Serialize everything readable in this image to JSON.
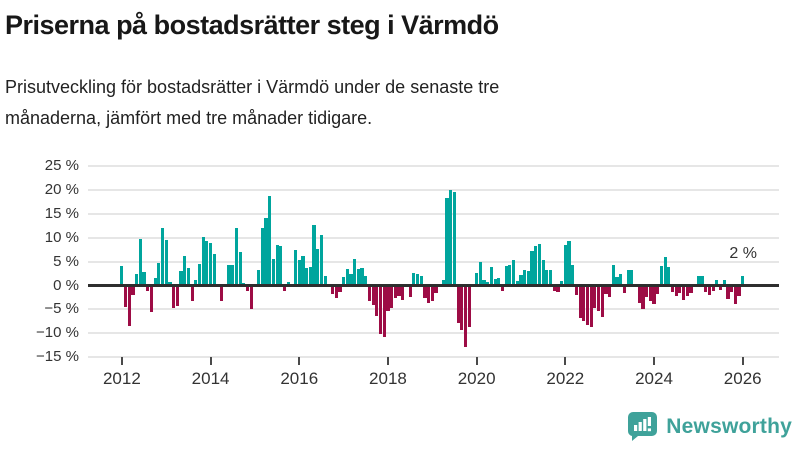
{
  "header": {
    "title": "Priserna på bostadsrätter steg i Värmdö",
    "subtitle_lines": [
      "Prisutveckling för bostadsrätter i Värmdö under de senaste tre",
      "månaderna, jämfört med tre månader tidigare."
    ]
  },
  "chart_data": {
    "type": "bar",
    "unit": "%",
    "frequency": "monthly",
    "start_month": "2012-01",
    "end_month": "2026-01",
    "description": "Rolling 3-month price change for bostadsrätter in Värmdö, one bar per month",
    "values": [
      4.0,
      -4.2,
      -8.1,
      -1.7,
      2.4,
      9.7,
      2.9,
      -0.8,
      -5.2,
      1.5,
      4.8,
      12.1,
      9.5,
      0.8,
      -4.4,
      -3.9,
      3.1,
      6.1,
      3.7,
      -3.0,
      1.1,
      4.5,
      10.2,
      9.2,
      8.8,
      6.5,
      0.0,
      -2.9,
      0.0,
      4.3,
      4.2,
      12.0,
      7.1,
      0.5,
      -0.8,
      -4.7,
      0.0,
      3.3,
      12.0,
      14.1,
      18.8,
      5.6,
      8.5,
      8.2,
      -0.8,
      0.7,
      0.0,
      7.4,
      5.4,
      6.1,
      3.7,
      3.8,
      12.7,
      7.6,
      10.5,
      2.0,
      0.0,
      -1.5,
      -2.4,
      -1.0,
      1.7,
      3.4,
      2.5,
      5.5,
      3.5,
      3.6,
      2.0,
      -2.9,
      -3.8,
      -6.1,
      -9.9,
      -10.4,
      -5.0,
      -4.3,
      -2.2,
      -1.9,
      -2.7,
      0.0,
      -2.1,
      2.7,
      2.3,
      1.9,
      -2.2,
      -3.4,
      -3.0,
      -1.3,
      0.4,
      1.2,
      18.3,
      19.9,
      19.5,
      -7.5,
      -9.0,
      -12.6,
      -8.3,
      0.0,
      2.6,
      5.0,
      1.1,
      0.8,
      3.9,
      1.3,
      1.6,
      -0.8,
      4.0,
      4.2,
      5.3,
      0.9,
      2.1,
      3.2,
      3.1,
      7.2,
      8.3,
      8.6,
      5.4,
      3.3,
      3.3,
      -0.9,
      -1.0,
      0.9,
      8.4,
      9.4,
      4.2,
      -1.7,
      -6.5,
      -7.0,
      -8.0,
      -8.3,
      -4.3,
      -5.1,
      -6.3,
      -1.4,
      -2.1,
      4.2,
      1.8,
      2.3,
      -1.2,
      3.2,
      3.2,
      0.0,
      -3.4,
      -4.5,
      -2.0,
      -3.0,
      -3.5,
      -1.5,
      4.0,
      6.0,
      3.9,
      -1.0,
      -1.9,
      -1.2,
      -2.8,
      -1.9,
      -1.3,
      0.0,
      1.9,
      1.9,
      -1.0,
      -1.7,
      -0.9,
      1.1,
      -0.6,
      1.2,
      -2.6,
      -1.1,
      -3.6,
      -1.9,
      2.0
    ],
    "y_axis": {
      "tick_values": [
        25,
        20,
        15,
        10,
        5,
        0,
        -5,
        -10,
        -15
      ],
      "tick_labels": [
        "25 %",
        "20 %",
        "15 %",
        "10 %",
        "5 %",
        "0 %",
        "−5 %",
        "−10 %",
        "−15 %"
      ],
      "range": [
        -15,
        25
      ],
      "grid": true
    },
    "x_axis": {
      "tick_years": [
        2012,
        2014,
        2016,
        2018,
        2020,
        2022,
        2024,
        2026
      ],
      "tick_labels": [
        "2012",
        "2014",
        "2016",
        "2018",
        "2020",
        "2022",
        "2024",
        "2026"
      ]
    },
    "annotation": {
      "label": "2 %",
      "value": 2.0
    },
    "legend": false,
    "colors": {
      "positive": "#00a59d",
      "negative": "#9d0c45",
      "zero_axis": "#2e2e2e",
      "gridline": "#e6e6e6",
      "tick_text": "#333333"
    }
  },
  "footer": {
    "brand": "Newsworthy",
    "brand_color": "#3fa29a"
  }
}
